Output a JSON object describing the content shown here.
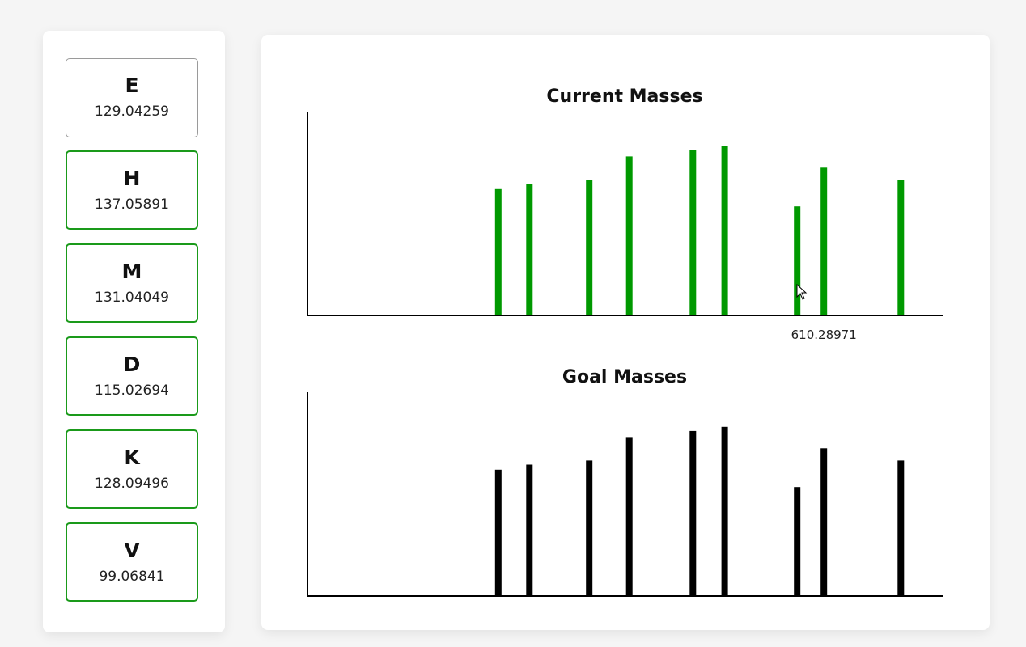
{
  "amino_acids": [
    {
      "letter": "E",
      "mass": "129.04259",
      "selected": true
    },
    {
      "letter": "H",
      "mass": "137.05891",
      "selected": false
    },
    {
      "letter": "M",
      "mass": "131.04049",
      "selected": false
    },
    {
      "letter": "D",
      "mass": "115.02694",
      "selected": false
    },
    {
      "letter": "K",
      "mass": "128.09496",
      "selected": false
    },
    {
      "letter": "V",
      "mass": "99.06841",
      "selected": false
    }
  ],
  "colors": {
    "current": "#009900",
    "goal": "#000000",
    "card_border": "#1a9a1a"
  },
  "cursor_icon": "arrow-cursor-icon",
  "chart_data": [
    {
      "type": "bar",
      "title": "Current Masses",
      "color": "#009900",
      "hover_label": "610.28971",
      "hover_index": 7,
      "xlim": [
        0,
        100
      ],
      "ylim": [
        0,
        100
      ],
      "x": [
        30.0,
        34.9,
        44.3,
        50.6,
        60.6,
        65.6,
        77.0,
        81.2,
        93.3
      ],
      "values": [
        62,
        64.5,
        66.5,
        78,
        81,
        83,
        53.5,
        72.5,
        66.5
      ]
    },
    {
      "type": "bar",
      "title": "Goal Masses",
      "color": "#000000",
      "xlim": [
        0,
        100
      ],
      "ylim": [
        0,
        100
      ],
      "x": [
        30.0,
        34.9,
        44.3,
        50.6,
        60.6,
        65.6,
        77.0,
        81.2,
        93.3
      ],
      "values": [
        62,
        64.5,
        66.5,
        78,
        81,
        83,
        53.5,
        72.5,
        66.5
      ]
    }
  ]
}
